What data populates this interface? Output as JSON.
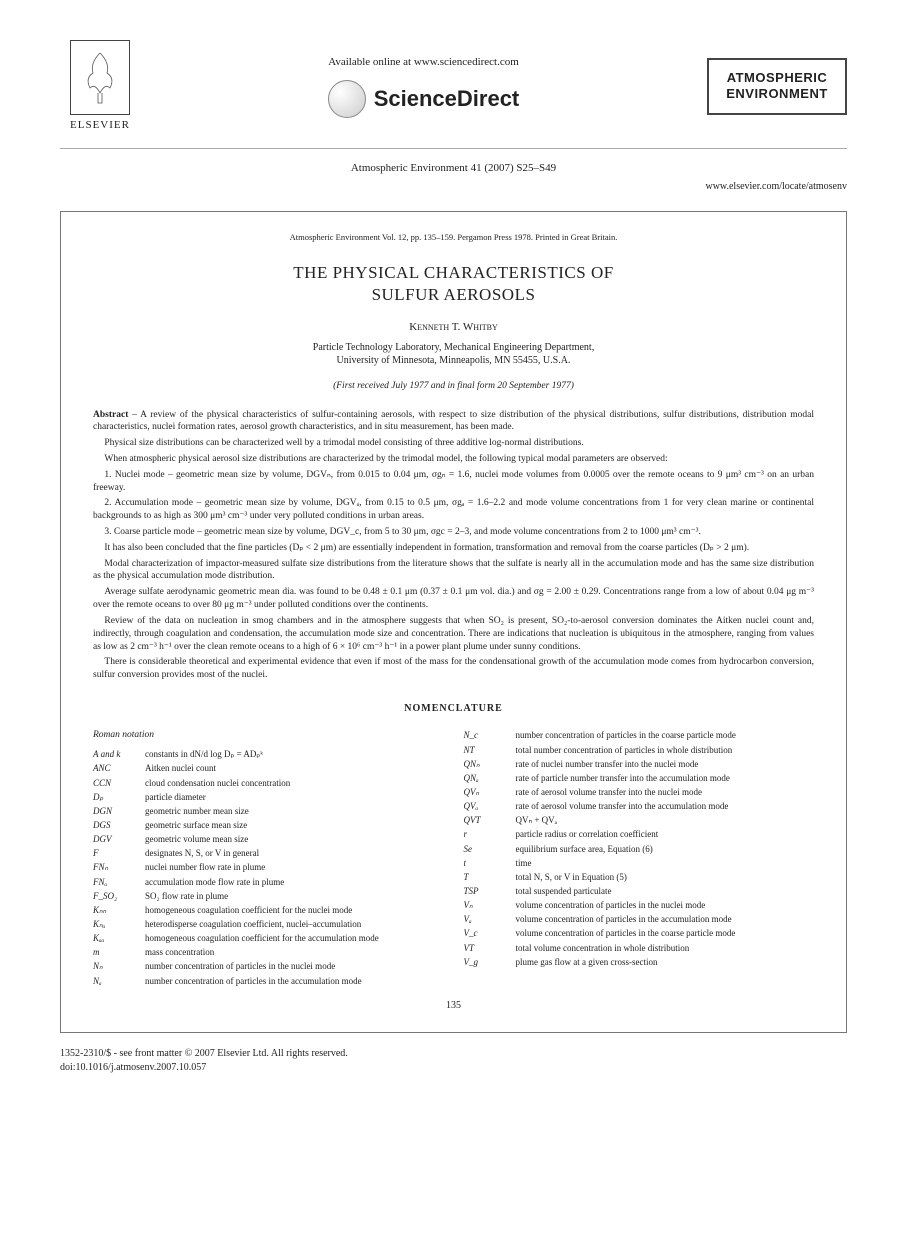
{
  "header": {
    "available_text": "Available online at www.sciencedirect.com",
    "sciencedirect_label": "ScienceDirect",
    "elsevier_label": "ELSEVIER",
    "journal_box_line1": "ATMOSPHERIC",
    "journal_box_line2": "ENVIRONMENT",
    "citation": "Atmospheric Environment 41 (2007) S25–S49",
    "url": "www.elsevier.com/locate/atmosenv"
  },
  "reprint": {
    "header_line": "Atmospheric Environment Vol. 12, pp. 135–159. Pergamon Press 1978. Printed in Great Britain.",
    "title_line1": "THE PHYSICAL CHARACTERISTICS OF",
    "title_line2": "SULFUR AEROSOLS",
    "author": "Kenneth T. Whitby",
    "affiliation_line1": "Particle Technology Laboratory, Mechanical Engineering Department,",
    "affiliation_line2": "University of Minnesota, Minneapolis, MN 55455, U.S.A.",
    "dates": "(First received July 1977 and in final form 20 September 1977)",
    "page_number": "135"
  },
  "abstract": {
    "lead": "Abstract",
    "p1": " – A review of the physical characteristics of sulfur-containing aerosols, with respect to size distribution of the physical distributions, sulfur distributions, distribution modal characteristics, nuclei formation rates, aerosol growth characteristics, and in situ measurement, has been made.",
    "p2": "Physical size distributions can be characterized well by a trimodal model consisting of three additive log-normal distributions.",
    "p3": "When atmospheric physical aerosol size distributions are characterized by the trimodal model, the following typical modal parameters are observed:",
    "p4": "1. Nuclei mode – geometric mean size by volume, DGVₙ, from 0.015 to 0.04 μm, σgₙ = 1.6, nuclei mode volumes from 0.0005 over the remote oceans to 9 μm³ cm⁻³ on an urban freeway.",
    "p5": "2. Accumulation mode – geometric mean size by volume, DGVₐ, from 0.15 to 0.5 μm, σgₐ = 1.6–2.2 and mode volume concentrations from 1 for very clean marine or continental backgrounds to as high as 300 μm³ cm⁻³ under very polluted conditions in urban areas.",
    "p6": "3. Coarse particle mode – geometric mean size by volume, DGV_c, from 5 to 30 μm, σgc = 2–3, and mode volume concentrations from 2 to 1000 μm³ cm⁻³.",
    "p7": "It has also been concluded that the fine particles (Dₚ < 2 μm) are essentially independent in formation, transformation and removal from the coarse particles (Dₚ > 2 μm).",
    "p8": "Modal characterization of impactor-measured sulfate size distributions from the literature shows that the sulfate is nearly all in the accumulation mode and has the same size distribution as the physical accumulation mode distribution.",
    "p9": "Average sulfate aerodynamic geometric mean dia. was found to be 0.48 ± 0.1 μm (0.37 ± 0.1 μm vol. dia.) and σg = 2.00 ± 0.29. Concentrations range from a low of about 0.04 μg m⁻³ over the remote oceans to over 80 μg m⁻³ under polluted conditions over the continents.",
    "p10": "Review of the data on nucleation in smog chambers and in the atmosphere suggests that when SO₂ is present, SO₂-to-aerosol conversion dominates the Aitken nuclei count and, indirectly, through coagulation and condensation, the accumulation mode size and concentration. There are indications that nucleation is ubiquitous in the atmosphere, ranging from values as low as 2 cm⁻³ h⁻¹ over the clean remote oceans to a high of 6 × 10⁶ cm⁻³ h⁻¹ in a power plant plume under sunny conditions.",
    "p11": "There is considerable theoretical and experimental evidence that even if most of the mass for the condensational growth of the accumulation mode comes from hydrocarbon conversion, sulfur conversion provides most of the nuclei."
  },
  "nomenclature": {
    "title": "NOMENCLATURE",
    "roman_heading": "Roman notation",
    "left": [
      {
        "sym": "A and k",
        "def": "constants in dN/d log Dₚ = ADₚᵏ"
      },
      {
        "sym": "ANC",
        "def": "Aitken nuclei count"
      },
      {
        "sym": "CCN",
        "def": "cloud condensation nuclei concentration"
      },
      {
        "sym": "Dₚ",
        "def": "particle diameter"
      },
      {
        "sym": "DGN",
        "def": "geometric number mean size"
      },
      {
        "sym": "DGS",
        "def": "geometric surface mean size"
      },
      {
        "sym": "DGV",
        "def": "geometric volume mean size"
      },
      {
        "sym": "F",
        "def": "designates N, S, or V in general"
      },
      {
        "sym": "FNₙ",
        "def": "nuclei number flow rate in plume"
      },
      {
        "sym": "FNₐ",
        "def": "accumulation mode flow rate in plume"
      },
      {
        "sym": "F_SO₂",
        "def": "SO₂ flow rate in plume"
      },
      {
        "sym": "Kₙₙ",
        "def": "homogeneous coagulation coefficient for the nuclei mode"
      },
      {
        "sym": "Kₙₐ",
        "def": "heterodisperse coagulation coefficient, nuclei–accumulation"
      },
      {
        "sym": "Kₐₐ",
        "def": "homogeneous coagulation coefficient for the accumulation mode"
      },
      {
        "sym": "m",
        "def": "mass concentration"
      },
      {
        "sym": "Nₙ",
        "def": "number concentration of particles in the nuclei mode"
      },
      {
        "sym": "Nₐ",
        "def": "number concentration of particles in the accumulation mode"
      }
    ],
    "right": [
      {
        "sym": "N_c",
        "def": "number concentration of particles in the coarse particle mode"
      },
      {
        "sym": "NT",
        "def": "total number concentration of particles in whole distribution"
      },
      {
        "sym": "QNₙ",
        "def": "rate of nuclei number transfer into the nuclei mode"
      },
      {
        "sym": "QNₐ",
        "def": "rate of particle number transfer into the accumulation mode"
      },
      {
        "sym": "QVₙ",
        "def": "rate of aerosol volume transfer into the nuclei mode"
      },
      {
        "sym": "QVₐ",
        "def": "rate of aerosol volume transfer into the accumulation mode"
      },
      {
        "sym": "QVT",
        "def": "QVₙ + QVₐ"
      },
      {
        "sym": "r",
        "def": "particle radius or correlation coefficient"
      },
      {
        "sym": "Se",
        "def": "equilibrium surface area, Equation (6)"
      },
      {
        "sym": "t",
        "def": "time"
      },
      {
        "sym": "T",
        "def": "total N, S, or V in Equation (5)"
      },
      {
        "sym": "TSP",
        "def": "total suspended particulate"
      },
      {
        "sym": "Vₙ",
        "def": "volume concentration of particles in the nuclei mode"
      },
      {
        "sym": "Vₐ",
        "def": "volume concentration of particles in the accumulation mode"
      },
      {
        "sym": "V_c",
        "def": "volume concentration of particles in the coarse particle mode"
      },
      {
        "sym": "VT",
        "def": "total volume concentration in whole distribution"
      },
      {
        "sym": "V_g",
        "def": "plume gas flow at a given cross-section"
      }
    ]
  },
  "footer": {
    "line1": "1352-2310/$ - see front matter © 2007 Elsevier Ltd. All rights reserved.",
    "line2": "doi:10.1016/j.atmosenv.2007.10.057"
  }
}
